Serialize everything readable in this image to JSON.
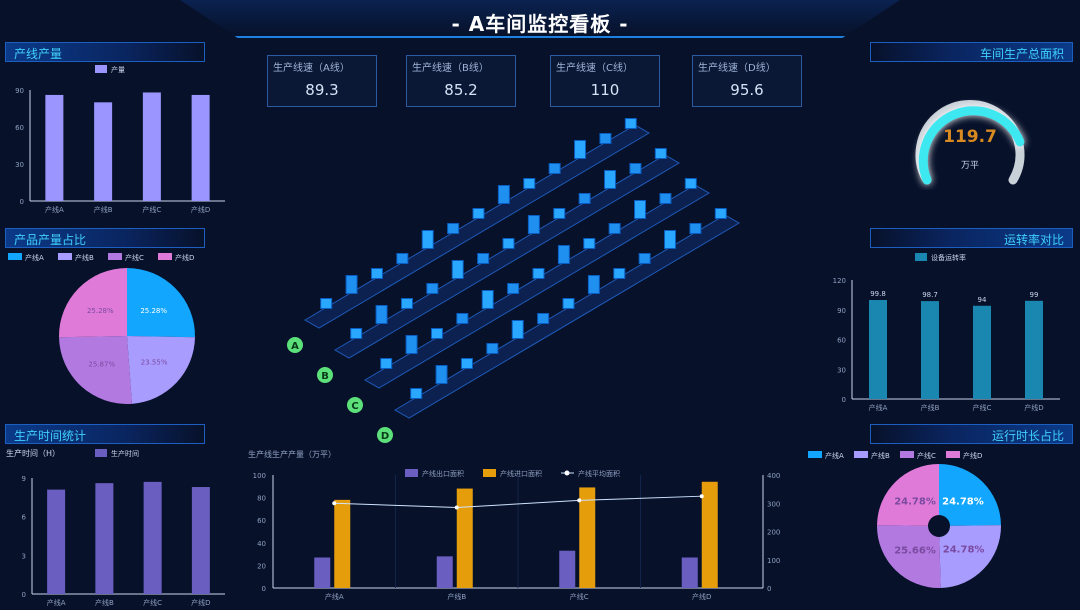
{
  "header": {
    "title": "- A车间监控看板 -"
  },
  "panels": {
    "line_output": "产线产量",
    "product_share": "产品产量占比",
    "production_time": "生产时间统计",
    "total_area": "车间生产总面积",
    "uptime": "运转率对比",
    "run_share": "运行时长占比"
  },
  "cards": [
    {
      "label": "生产线速（A线）",
      "value": "89.3"
    },
    {
      "label": "生产线速（B线）",
      "value": "85.2"
    },
    {
      "label": "生产线速（C线）",
      "value": "110"
    },
    {
      "label": "生产线速（D线）",
      "value": "95.6"
    }
  ],
  "gauge": {
    "value": "119.7",
    "unit": "万平",
    "fraction": 0.82,
    "color": "#3ee8f0"
  },
  "factory": {
    "lines": [
      "A",
      "B",
      "C",
      "D"
    ]
  },
  "chart_data": [
    {
      "id": "output",
      "type": "bar",
      "legend": [
        "产量"
      ],
      "categories": [
        "产线A",
        "产线B",
        "产线C",
        "产线D"
      ],
      "values": [
        86,
        80,
        88,
        86
      ],
      "ylim": [
        0,
        90
      ],
      "yticks": [
        0,
        30,
        60,
        90
      ],
      "color": "#9b96ff"
    },
    {
      "id": "share",
      "type": "pie",
      "legend": [
        "产线A",
        "产线B",
        "产线C",
        "产线D"
      ],
      "values": [
        25.28,
        23.55,
        25.87,
        25.28
      ],
      "labels": [
        "25.28%",
        "23.55%",
        "25.87%",
        "25.28%"
      ],
      "colors": [
        "#12a6ff",
        "#a99cff",
        "#b27ae0",
        "#e07ad8"
      ]
    },
    {
      "id": "time",
      "type": "bar",
      "ylabel": "生产时间（H）",
      "legend": [
        "生产时间"
      ],
      "categories": [
        "产线A",
        "产线B",
        "产线C",
        "产线D"
      ],
      "values": [
        8.1,
        8.6,
        8.7,
        8.3
      ],
      "ylim": [
        0,
        9
      ],
      "yticks": [
        0,
        3,
        6,
        9
      ],
      "color": "#6a5fc0"
    },
    {
      "id": "uptime",
      "type": "bar",
      "legend": [
        "设备运转率"
      ],
      "categories": [
        "产线A",
        "产线B",
        "产线C",
        "产线D"
      ],
      "values": [
        99.8,
        98.7,
        94,
        99
      ],
      "labels": [
        "99.8",
        "98.7",
        "94",
        "99"
      ],
      "ylim": [
        0,
        120
      ],
      "yticks": [
        0,
        30,
        60,
        90,
        120
      ],
      "color": "#1a87b0"
    },
    {
      "id": "area",
      "type": "bar+line",
      "title": "生产线生产产量（万平）",
      "categories": [
        "产线A",
        "产线B",
        "产线C",
        "产线D"
      ],
      "series": [
        {
          "name": "产线出口面积",
          "type": "bar",
          "values": [
            27,
            28,
            33,
            27
          ],
          "color": "#6a5fc0"
        },
        {
          "name": "产线进口面积",
          "type": "bar",
          "values": [
            78,
            88,
            89,
            94
          ],
          "color": "#e59d0c"
        },
        {
          "name": "产线平均面积",
          "type": "line",
          "axis": "right",
          "values": [
            300,
            285,
            310,
            325
          ],
          "color": "#cfe3ff"
        }
      ],
      "ylim": [
        0,
        100
      ],
      "yticks": [
        0,
        20,
        40,
        60,
        80,
        100
      ],
      "y2lim": [
        0,
        400
      ],
      "y2ticks": [
        0,
        100,
        200,
        300,
        400
      ]
    },
    {
      "id": "run",
      "type": "donut",
      "legend": [
        "产线A",
        "产线B",
        "产线C",
        "产线D"
      ],
      "values": [
        24.78,
        24.78,
        25.66,
        24.78
      ],
      "labels": [
        "24.78%",
        "24.78%",
        "25.66%",
        "24.78%"
      ],
      "colors": [
        "#12a6ff",
        "#a99cff",
        "#b27ae0",
        "#e07ad8"
      ]
    }
  ]
}
